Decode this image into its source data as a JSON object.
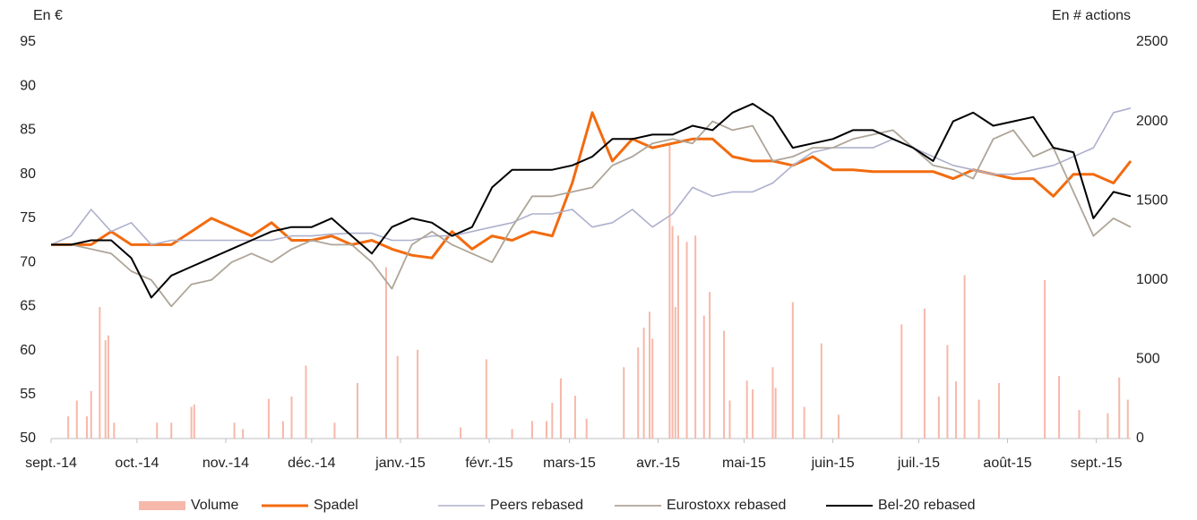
{
  "chart_data": {
    "type": "line",
    "y_label": "En €",
    "y2_label": "En # actions",
    "x": [
      0,
      7,
      14,
      21,
      28,
      35,
      42,
      49,
      56,
      63,
      70,
      77,
      84,
      91,
      98,
      105,
      112,
      119,
      126,
      133,
      140,
      147,
      154,
      161,
      168,
      175,
      182,
      189,
      196,
      203,
      210,
      217,
      224,
      231,
      238,
      245,
      252,
      259,
      266,
      273,
      280,
      287,
      294,
      301,
      308,
      315,
      322,
      329,
      336,
      343,
      350,
      357,
      364,
      371,
      377
    ],
    "xlim": [
      0,
      377
    ],
    "xticks": [
      {
        "value": 0,
        "label": "sept.-14"
      },
      {
        "value": 30,
        "label": "oct.-14"
      },
      {
        "value": 61,
        "label": "nov.-14"
      },
      {
        "value": 91,
        "label": "déc.-14"
      },
      {
        "value": 122,
        "label": "janv.-15"
      },
      {
        "value": 153,
        "label": "févr.-15"
      },
      {
        "value": 181,
        "label": "mars-15"
      },
      {
        "value": 212,
        "label": "avr.-15"
      },
      {
        "value": 242,
        "label": "mai-15"
      },
      {
        "value": 273,
        "label": "juin-15"
      },
      {
        "value": 303,
        "label": "juil.-15"
      },
      {
        "value": 334,
        "label": "août-15"
      },
      {
        "value": 365,
        "label": "sept.-15"
      }
    ],
    "ylim": [
      50,
      95
    ],
    "yticks": [
      50,
      55,
      60,
      65,
      70,
      75,
      80,
      85,
      90,
      95
    ],
    "y2lim": [
      0,
      2500
    ],
    "y2ticks": [
      0,
      500,
      1000,
      1500,
      2000,
      2500
    ],
    "grid": false,
    "legend": "bottom",
    "series": [
      {
        "name": "Volume",
        "type": "bar",
        "axis": "y2",
        "color": "#f6b8aa",
        "x": [
          6,
          9,
          12.5,
          14,
          17,
          19,
          20,
          22,
          37,
          42,
          49,
          50,
          64,
          67,
          76,
          81,
          84,
          89,
          99,
          107,
          117,
          121,
          128,
          143,
          152,
          161,
          168,
          173,
          175,
          178,
          183,
          187,
          200,
          205,
          207,
          209,
          210,
          216,
          217,
          218,
          219,
          222,
          225,
          228,
          230,
          235,
          237,
          243,
          245,
          252,
          253,
          259,
          263,
          269,
          275,
          297,
          305,
          310,
          313,
          316,
          319,
          324,
          331,
          347,
          352,
          359,
          369,
          373,
          376
        ],
        "values": [
          140,
          240,
          140,
          300,
          830,
          620,
          650,
          100,
          100,
          100,
          200,
          215,
          100,
          60,
          250,
          110,
          265,
          460,
          100,
          350,
          1080,
          520,
          560,
          70,
          500,
          60,
          110,
          110,
          225,
          380,
          270,
          125,
          450,
          575,
          700,
          800,
          630,
          1860,
          1340,
          830,
          1280,
          1240,
          1280,
          775,
          925,
          680,
          240,
          365,
          310,
          450,
          320,
          860,
          200,
          600,
          150,
          720,
          820,
          265,
          590,
          360,
          1030,
          245,
          350,
          1000,
          395,
          180,
          160,
          385,
          245
        ]
      },
      {
        "name": "Spadel",
        "color": "#f26b0f",
        "width": 3,
        "values": [
          72,
          72,
          72,
          73.5,
          72,
          72,
          72,
          73.5,
          75,
          74,
          73,
          74.5,
          72.5,
          72.5,
          73,
          72,
          72.5,
          71.5,
          70.8,
          70.5,
          73.5,
          71.5,
          73,
          72.5,
          73.5,
          73,
          79,
          87,
          81.5,
          84,
          83,
          83.5,
          84,
          84,
          82,
          81.5,
          81.5,
          81,
          82,
          80.5,
          80.5,
          80.3,
          80.3,
          80.3,
          80.3,
          79.5,
          80.5,
          80,
          79.5,
          79.5,
          77.5,
          80,
          80,
          79,
          81.5
        ]
      },
      {
        "name": "Peers rebased",
        "color": "#aeb0cc",
        "width": 1.6,
        "values": [
          72,
          73,
          76,
          73.5,
          74.5,
          72,
          72.5,
          72.5,
          72.5,
          72.5,
          72.5,
          72.5,
          73,
          73,
          73.2,
          73.3,
          73.3,
          72.5,
          72.5,
          73,
          73,
          73.5,
          74,
          74.5,
          75.5,
          75.5,
          76,
          74,
          74.5,
          76,
          74,
          75.5,
          78.5,
          77.5,
          78,
          78,
          79,
          81,
          82.5,
          83,
          83,
          83,
          84,
          83,
          82,
          81,
          80.5,
          80,
          80,
          80.5,
          81,
          82,
          83,
          87,
          87.5
        ]
      },
      {
        "name": "Eurostoxx rebased",
        "color": "#aea598",
        "width": 1.8,
        "values": [
          72,
          72,
          71.5,
          71,
          69,
          68,
          65,
          67.5,
          68,
          70,
          71,
          70,
          71.5,
          72.5,
          72,
          72,
          70,
          67,
          72,
          73.5,
          72,
          71,
          70,
          74,
          77.5,
          77.5,
          78,
          78.5,
          81,
          82,
          83.5,
          84,
          83.5,
          86,
          85,
          85.5,
          81.5,
          82,
          83,
          83,
          84,
          84.5,
          85,
          83,
          81,
          80.5,
          79.5,
          84,
          85,
          82,
          83,
          78,
          73,
          75,
          74
        ]
      },
      {
        "name": "Bel-20 rebased",
        "color": "#000000",
        "width": 2,
        "values": [
          72,
          72,
          72.5,
          72.5,
          70.5,
          66,
          68.5,
          69.5,
          70.5,
          71.5,
          72.5,
          73.5,
          74,
          74,
          75,
          73,
          71,
          74,
          75,
          74.5,
          73,
          74,
          78.5,
          80.5,
          80.5,
          80.5,
          81,
          82,
          84,
          84,
          84.5,
          84.5,
          85.5,
          85,
          87,
          88,
          86.5,
          83,
          83.5,
          84,
          85,
          85,
          84,
          83,
          81.5,
          86,
          87,
          85.5,
          86,
          86.5,
          83,
          82.5,
          75,
          78,
          77.5
        ]
      }
    ]
  }
}
